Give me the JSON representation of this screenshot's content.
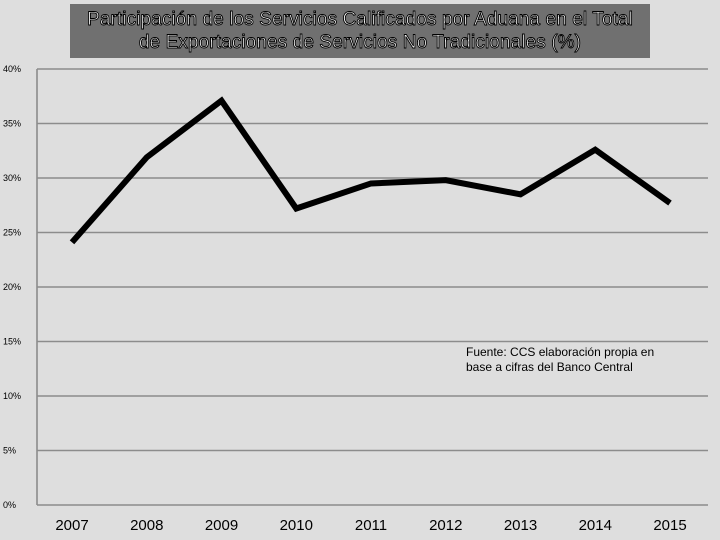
{
  "chart_data": {
    "type": "line",
    "title_lines": [
      "Participación de los Servicios Calificados por Aduana en el Total",
      "de Exportaciones de Servicios No Tradicionales (%)"
    ],
    "categories": [
      "2007",
      "2008",
      "2009",
      "2010",
      "2011",
      "2012",
      "2013",
      "2014",
      "2015"
    ],
    "series": [
      {
        "values": [
          24.1,
          31.9,
          37.1,
          27.2,
          29.5,
          29.8,
          28.5,
          32.6,
          27.7
        ],
        "color": "#000000"
      }
    ],
    "ylim": [
      0,
      40
    ],
    "yticks": [
      0,
      5,
      10,
      15,
      20,
      25,
      30,
      35,
      40
    ],
    "ytick_labels": [
      "0%",
      "5%",
      "10%",
      "15%",
      "20%",
      "25%",
      "30%",
      "35%",
      "40%"
    ],
    "grid": true,
    "gridline_color": "#8c8c8c",
    "background_color": "#dedede",
    "title_background": "#707070",
    "source_note": [
      "Fuente: CCS elaboración propia en",
      "base a cifras del Banco Central"
    ]
  }
}
